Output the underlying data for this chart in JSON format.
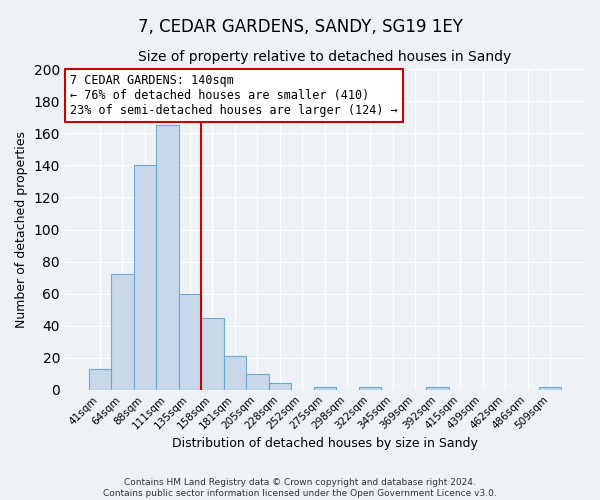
{
  "title": "7, CEDAR GARDENS, SANDY, SG19 1EY",
  "subtitle": "Size of property relative to detached houses in Sandy",
  "xlabel": "Distribution of detached houses by size in Sandy",
  "ylabel": "Number of detached properties",
  "bar_labels": [
    "41sqm",
    "64sqm",
    "88sqm",
    "111sqm",
    "135sqm",
    "158sqm",
    "181sqm",
    "205sqm",
    "228sqm",
    "252sqm",
    "275sqm",
    "298sqm",
    "322sqm",
    "345sqm",
    "369sqm",
    "392sqm",
    "415sqm",
    "439sqm",
    "462sqm",
    "486sqm",
    "509sqm"
  ],
  "bar_values": [
    13,
    72,
    140,
    165,
    60,
    45,
    21,
    10,
    4,
    0,
    2,
    0,
    2,
    0,
    0,
    2,
    0,
    0,
    0,
    0,
    2
  ],
  "bar_color": "#c8d8ea",
  "bar_edge_color": "#6aaad4",
  "vline_color": "#cc0000",
  "annotation_title": "7 CEDAR GARDENS: 140sqm",
  "annotation_line1": "← 76% of detached houses are smaller (410)",
  "annotation_line2": "23% of semi-detached houses are larger (124) →",
  "annotation_box_color": "#cc0000",
  "ylim": [
    0,
    200
  ],
  "yticks": [
    0,
    20,
    40,
    60,
    80,
    100,
    120,
    140,
    160,
    180,
    200
  ],
  "footer1": "Contains HM Land Registry data © Crown copyright and database right 2024.",
  "footer2": "Contains public sector information licensed under the Open Government Licence v3.0.",
  "background_color": "#eef2f7",
  "plot_bg_color": "#eef2f7",
  "title_fontsize": 12,
  "subtitle_fontsize": 10
}
